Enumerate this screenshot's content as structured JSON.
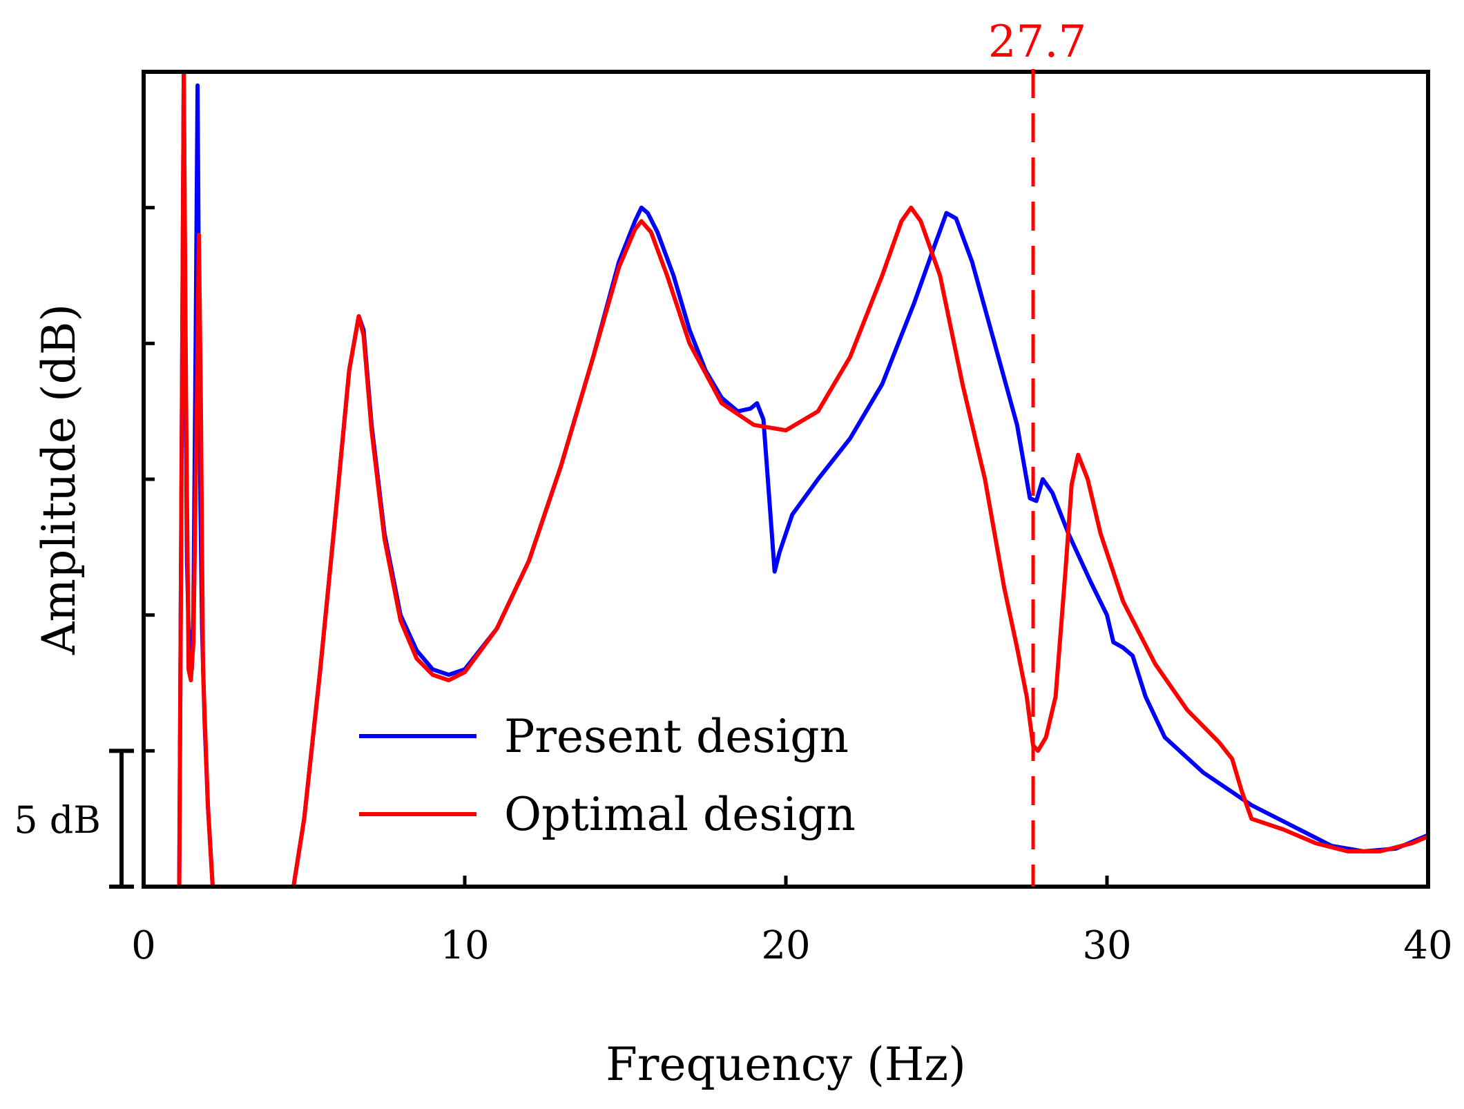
{
  "chart_data": {
    "type": "line",
    "xlabel": "Frequency (Hz)",
    "ylabel": "Amplitude (dB)",
    "xlim": [
      0,
      40
    ],
    "ylim": [
      0,
      30
    ],
    "x_ticks": [
      0,
      10,
      20,
      30,
      40
    ],
    "x_tick_labels": [
      "0",
      "10",
      "20",
      "30",
      "40"
    ],
    "y_ticks": [
      5,
      10,
      15,
      20,
      25
    ],
    "grid": false,
    "legend_position": "bottom-center",
    "scale_bar": {
      "label": "5 dB",
      "from": 0,
      "to": 5
    },
    "annotations": [
      {
        "type": "vertical-dashed-line",
        "x": 27.7,
        "label": "27.7",
        "color": "#ff0000"
      }
    ],
    "series": [
      {
        "name": "Present design",
        "color": "#0000ff",
        "points": [
          [
            1.1,
            -2
          ],
          [
            1.25,
            30
          ],
          [
            1.3,
            20
          ],
          [
            1.35,
            12
          ],
          [
            1.4,
            9.5
          ],
          [
            1.5,
            8.0
          ],
          [
            1.55,
            10
          ],
          [
            1.62,
            20
          ],
          [
            1.68,
            29.5
          ],
          [
            1.72,
            22
          ],
          [
            1.77,
            14
          ],
          [
            1.82,
            9.5
          ],
          [
            1.9,
            6
          ],
          [
            2.0,
            3
          ],
          [
            2.2,
            -1
          ],
          [
            4.6,
            -0.5
          ],
          [
            5.0,
            2.5
          ],
          [
            5.5,
            8
          ],
          [
            6.0,
            14
          ],
          [
            6.4,
            19
          ],
          [
            6.7,
            21
          ],
          [
            6.85,
            20.5
          ],
          [
            7.1,
            17
          ],
          [
            7.5,
            13
          ],
          [
            8.0,
            10
          ],
          [
            8.5,
            8.7
          ],
          [
            9.0,
            8.0
          ],
          [
            9.5,
            7.8
          ],
          [
            10.0,
            8.0
          ],
          [
            11,
            9.5
          ],
          [
            12,
            12
          ],
          [
            13,
            15.5
          ],
          [
            14,
            19.5
          ],
          [
            14.8,
            23
          ],
          [
            15.3,
            24.5
          ],
          [
            15.5,
            25
          ],
          [
            15.7,
            24.8
          ],
          [
            16,
            24.1
          ],
          [
            16.5,
            22.5
          ],
          [
            17,
            20.5
          ],
          [
            17.5,
            19
          ],
          [
            18,
            18
          ],
          [
            18.5,
            17.5
          ],
          [
            18.9,
            17.6
          ],
          [
            19.1,
            17.8
          ],
          [
            19.3,
            17.2
          ],
          [
            19.5,
            14
          ],
          [
            19.65,
            11.6
          ],
          [
            19.8,
            12.3
          ],
          [
            20.2,
            13.7
          ],
          [
            21,
            15
          ],
          [
            22,
            16.5
          ],
          [
            23,
            18.5
          ],
          [
            24,
            21.5
          ],
          [
            24.6,
            23.5
          ],
          [
            25.0,
            24.8
          ],
          [
            25.3,
            24.6
          ],
          [
            25.8,
            23.0
          ],
          [
            26.5,
            20
          ],
          [
            27.2,
            17
          ],
          [
            27.6,
            14.3
          ],
          [
            27.8,
            14.2
          ],
          [
            28,
            15.0
          ],
          [
            28.3,
            14.5
          ],
          [
            28.8,
            13.0
          ],
          [
            29.5,
            11.2
          ],
          [
            30,
            10.0
          ],
          [
            30.2,
            9.0
          ],
          [
            30.5,
            8.8
          ],
          [
            30.8,
            8.5
          ],
          [
            31.2,
            7.0
          ],
          [
            31.8,
            5.5
          ],
          [
            33,
            4.2
          ],
          [
            34.5,
            3.0
          ],
          [
            36,
            2.1
          ],
          [
            37,
            1.5
          ],
          [
            38,
            1.3
          ],
          [
            39,
            1.4
          ],
          [
            40,
            1.9
          ]
        ]
      },
      {
        "name": "Optimal design",
        "color": "#ff0000",
        "points": [
          [
            1.1,
            -2
          ],
          [
            1.18,
            15
          ],
          [
            1.25,
            30
          ],
          [
            1.32,
            18
          ],
          [
            1.4,
            8
          ],
          [
            1.47,
            7.6
          ],
          [
            1.55,
            9
          ],
          [
            1.65,
            17
          ],
          [
            1.72,
            24
          ],
          [
            1.78,
            18
          ],
          [
            1.85,
            8
          ],
          [
            2.0,
            3
          ],
          [
            2.2,
            -1
          ],
          [
            4.6,
            -0.5
          ],
          [
            5.0,
            2.5
          ],
          [
            5.5,
            8
          ],
          [
            6.0,
            14
          ],
          [
            6.4,
            19
          ],
          [
            6.7,
            21
          ],
          [
            6.85,
            20.3
          ],
          [
            7.1,
            16.8
          ],
          [
            7.5,
            12.8
          ],
          [
            8.0,
            9.8
          ],
          [
            8.5,
            8.4
          ],
          [
            9.0,
            7.8
          ],
          [
            9.5,
            7.6
          ],
          [
            10.0,
            7.9
          ],
          [
            11,
            9.5
          ],
          [
            12,
            12
          ],
          [
            13,
            15.5
          ],
          [
            14,
            19.5
          ],
          [
            14.8,
            22.8
          ],
          [
            15.3,
            24.2
          ],
          [
            15.5,
            24.5
          ],
          [
            15.8,
            24.1
          ],
          [
            16.3,
            22.5
          ],
          [
            17,
            20
          ],
          [
            18,
            17.8
          ],
          [
            19,
            17.0
          ],
          [
            19.5,
            16.9
          ],
          [
            20,
            16.8
          ],
          [
            21,
            17.5
          ],
          [
            22,
            19.5
          ],
          [
            23,
            22.5
          ],
          [
            23.6,
            24.5
          ],
          [
            23.9,
            25
          ],
          [
            24.2,
            24.5
          ],
          [
            24.8,
            22.5
          ],
          [
            25.5,
            18.5
          ],
          [
            26.2,
            15
          ],
          [
            26.8,
            11
          ],
          [
            27.2,
            8.8
          ],
          [
            27.5,
            7.0
          ],
          [
            27.7,
            5.2
          ],
          [
            27.85,
            5.0
          ],
          [
            28.1,
            5.5
          ],
          [
            28.4,
            7.0
          ],
          [
            28.7,
            11.5
          ],
          [
            28.9,
            14.8
          ],
          [
            29.1,
            15.9
          ],
          [
            29.4,
            15
          ],
          [
            29.8,
            13
          ],
          [
            30.5,
            10.5
          ],
          [
            31.5,
            8.2
          ],
          [
            32.5,
            6.5
          ],
          [
            33.5,
            5.3
          ],
          [
            33.9,
            4.7
          ],
          [
            34.2,
            3.5
          ],
          [
            34.5,
            2.5
          ],
          [
            35.5,
            2.1
          ],
          [
            36.5,
            1.6
          ],
          [
            37.5,
            1.3
          ],
          [
            38.5,
            1.3
          ],
          [
            39.5,
            1.6
          ],
          [
            40,
            1.85
          ]
        ]
      }
    ]
  }
}
